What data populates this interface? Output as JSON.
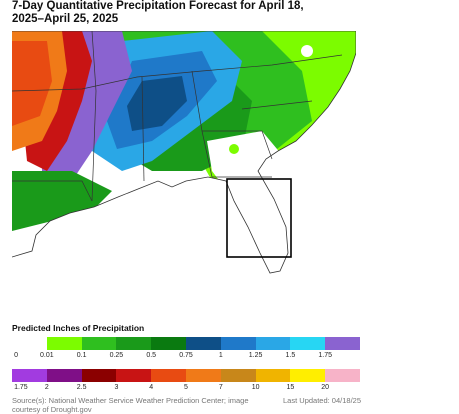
{
  "title": "7-Day Quantitative Precipitation Forecast for April 18, 2025–April 25, 2025",
  "legend": {
    "title": "Predicted Inches of Precipitation",
    "row1": {
      "colors": [
        "#ffffff",
        "#7cfc00",
        "#2fbf1f",
        "#1a9a1a",
        "#0a7a10",
        "#0e4f87",
        "#1f79c9",
        "#2aa7e6",
        "#27d6f3",
        "#8a63d0"
      ],
      "labels": [
        "0",
        "0.01",
        "0.1",
        "0.25",
        "0.5",
        "0.75",
        "1",
        "1.25",
        "1.5",
        "1.75"
      ]
    },
    "row2": {
      "colors": [
        "#a23be0",
        "#7f0f87",
        "#8b0000",
        "#c81414",
        "#e84b12",
        "#f07a18",
        "#c8871a",
        "#f0b400",
        "#ffee00",
        "#f7b3c8"
      ],
      "labels": [
        "1.75",
        "2",
        "2.5",
        "3",
        "4",
        "5",
        "7",
        "10",
        "15",
        "20"
      ]
    }
  },
  "map": {
    "highlight": "Florida"
  },
  "footer": {
    "source": "Source(s): National Weather Service Weather Prediction Center; image courtesy of Drought.gov",
    "updated": "Last Updated: 04/18/25"
  }
}
